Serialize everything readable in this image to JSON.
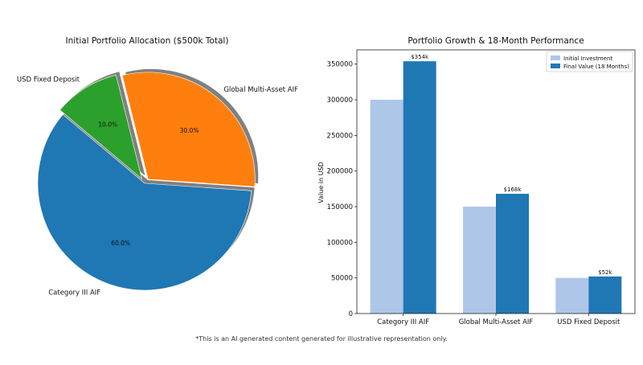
{
  "colors": {
    "category_iii": "#1f77b4",
    "global_multi_asset": "#ff7f0e",
    "usd_fixed_deposit": "#2ca02c",
    "initial_investment": "#aec7e8",
    "final_value": "#1f77b4",
    "shadow": "#808080"
  },
  "chart_data": [
    {
      "type": "pie",
      "title": "Initial Portfolio Allocation ($500k Total)",
      "slices": [
        {
          "label": "Category III AIF",
          "value": 60.0,
          "pct_label": "60.0%",
          "color": "#1f77b4",
          "exploded": false
        },
        {
          "label": "Global Multi-Asset AIF",
          "value": 30.0,
          "pct_label": "30.0%",
          "color": "#ff7f0e",
          "exploded": true
        },
        {
          "label": "USD Fixed Deposit",
          "value": 10.0,
          "pct_label": "10.0%",
          "color": "#2ca02c",
          "exploded": true
        }
      ],
      "shadow": true
    },
    {
      "type": "bar",
      "title": "Portfolio Growth & 18-Month Performance",
      "categories": [
        "Category III AIF",
        "Global Multi-Asset AIF",
        "USD Fixed Deposit"
      ],
      "series": [
        {
          "name": "Initial Investment",
          "values": [
            300000,
            150000,
            50000
          ],
          "color": "#aec7e8"
        },
        {
          "name": "Final Value (18 Months)",
          "values": [
            354000,
            168000,
            52000
          ],
          "color": "#1f77b4"
        }
      ],
      "data_labels": [
        "$354k",
        "$168k",
        "$52k"
      ],
      "xlabel": "",
      "ylabel": "Value in USD",
      "ylim": [
        0,
        370000
      ],
      "yticks": [
        0,
        50000,
        100000,
        150000,
        200000,
        250000,
        300000,
        350000
      ],
      "ytick_labels": [
        "0",
        "50000",
        "100000",
        "150000",
        "200000",
        "250000",
        "300000",
        "350000"
      ],
      "legend": "top-right",
      "grid": false
    }
  ],
  "footnote": "*This is an AI generated content generated for illustrative representation only."
}
